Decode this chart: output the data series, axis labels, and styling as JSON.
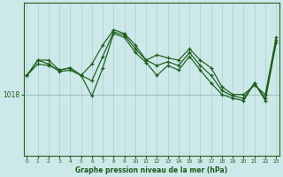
{
  "xlabel": "Graphe pression niveau de la mer (hPa)",
  "background_color": "#cce8e8",
  "grid_color_v": "#a8d0d0",
  "grid_color_h": "#9bbfbf",
  "line_color": "#1a5c1a",
  "y_tick_label": 1018,
  "ylim": [
    1010.0,
    1030.0
  ],
  "xlim": [
    -0.3,
    23.3
  ],
  "x_ticks": [
    0,
    1,
    2,
    3,
    4,
    5,
    6,
    7,
    8,
    9,
    10,
    11,
    12,
    13,
    14,
    15,
    16,
    17,
    18,
    19,
    20,
    21,
    22,
    23
  ],
  "line1_y": [
    1020.5,
    1022.5,
    1022.5,
    1021.2,
    1021.5,
    1020.5,
    1022.0,
    1024.5,
    1026.5,
    1026.0,
    1024.5,
    1022.5,
    1023.2,
    1022.8,
    1022.5,
    1024.0,
    1022.5,
    1021.5,
    1019.0,
    1018.0,
    1018.0,
    1019.2,
    1018.0,
    1025.5
  ],
  "line2_y": [
    1020.5,
    1022.5,
    1022.0,
    1021.0,
    1021.2,
    1020.5,
    1017.8,
    1021.5,
    1026.0,
    1025.5,
    1023.5,
    1022.2,
    1020.5,
    1021.8,
    1021.2,
    1023.0,
    1021.2,
    1019.5,
    1018.0,
    1017.5,
    1017.2,
    1019.5,
    1017.2,
    1024.8
  ],
  "line3_y": [
    1020.5,
    1022.0,
    1021.8,
    1021.2,
    1021.5,
    1020.5,
    1019.8,
    1023.0,
    1026.2,
    1025.8,
    1024.0,
    1022.5,
    1021.8,
    1022.3,
    1021.8,
    1023.5,
    1021.8,
    1020.5,
    1018.5,
    1017.8,
    1017.5,
    1019.5,
    1017.5,
    1025.2
  ]
}
